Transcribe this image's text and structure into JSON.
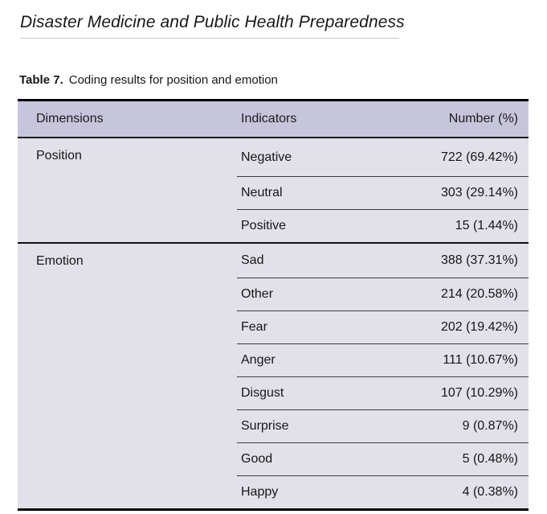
{
  "page": {
    "journal_title": "Disaster Medicine and Public Health Preparedness"
  },
  "caption": {
    "label": "Table 7.",
    "text": "Coding results for position and emotion"
  },
  "table": {
    "columns": [
      "Dimensions",
      "Indicators",
      "Number (%)"
    ],
    "sections": [
      {
        "dimension": "Position",
        "rows": [
          {
            "indicator": "Negative",
            "number": "722 (69.42%)"
          },
          {
            "indicator": "Neutral",
            "number": "303 (29.14%)"
          },
          {
            "indicator": "Positive",
            "number": "15 (1.44%)"
          }
        ]
      },
      {
        "dimension": "Emotion",
        "rows": [
          {
            "indicator": "Sad",
            "number": "388 (37.31%)"
          },
          {
            "indicator": "Other",
            "number": "214 (20.58%)"
          },
          {
            "indicator": "Fear",
            "number": "202 (19.42%)"
          },
          {
            "indicator": "Anger",
            "number": "111 (10.67%)"
          },
          {
            "indicator": "Disgust",
            "number": "107 (10.29%)"
          },
          {
            "indicator": "Surprise",
            "number": "9 (0.87%)"
          },
          {
            "indicator": "Good",
            "number": "5 (0.48%)"
          },
          {
            "indicator": "Happy",
            "number": "4 (0.38%)"
          }
        ]
      }
    ]
  },
  "colors": {
    "header_bg": "#c7c5dc",
    "body_bg": "#e2e1ea",
    "rule_dark": "#000000",
    "rule_thin": "#3c3c3c",
    "text": "#161616"
  }
}
